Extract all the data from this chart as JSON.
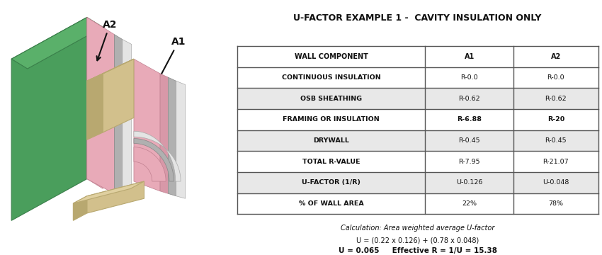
{
  "title": "U-FACTOR EXAMPLE 1 -  CAVITY INSULATION ONLY",
  "col_headers": [
    "WALL COMPONENT",
    "A1",
    "A2"
  ],
  "rows": [
    [
      "CONTINUOUS INSULATION",
      "R-0.0",
      "R-0.0"
    ],
    [
      "OSB SHEATHING",
      "R-0.62",
      "R-0.62"
    ],
    [
      "FRAMING OR INSULATION",
      "R-6.88",
      "R-20"
    ],
    [
      "DRYWALL",
      "R-0.45",
      "R-0.45"
    ],
    [
      "TOTAL R-VALUE",
      "R-7.95",
      "R-21.07"
    ],
    [
      "U-FACTOR (1/R)",
      "U-0.126",
      "U-0.048"
    ],
    [
      "% OF WALL AREA",
      "22%",
      "78%"
    ]
  ],
  "bold_row_index": 2,
  "calc_line1": "Calculation: Area weighted average U-factor",
  "calc_line2": "U = (0.22 x 0.126) + (0.78 x 0.048)",
  "calc_line3_bold": "U = 0.065     Effective R = 1/U = 15.38",
  "header_bg": "#ffffff",
  "row_bg_white": "#ffffff",
  "row_bg_gray": "#e8e8e8",
  "table_border_color": "#555555",
  "text_color": "#111111",
  "title_color": "#111111",
  "bg_color": "#ffffff",
  "green_face": "#4a9e5c",
  "green_edge": "#3a7e4a",
  "green_top": "#5ab06a",
  "pink_light": "#e8aab8",
  "pink_dark": "#d898a8",
  "tan_face": "#d2c08c",
  "tan_side": "#b8a870",
  "tan_top": "#e0d0a0",
  "gray_osb": "#b0b0b0",
  "gray_light": "#d0d0d0",
  "gray_outer": "#c8c8c8",
  "white_sheathing": "#e4e4e4"
}
